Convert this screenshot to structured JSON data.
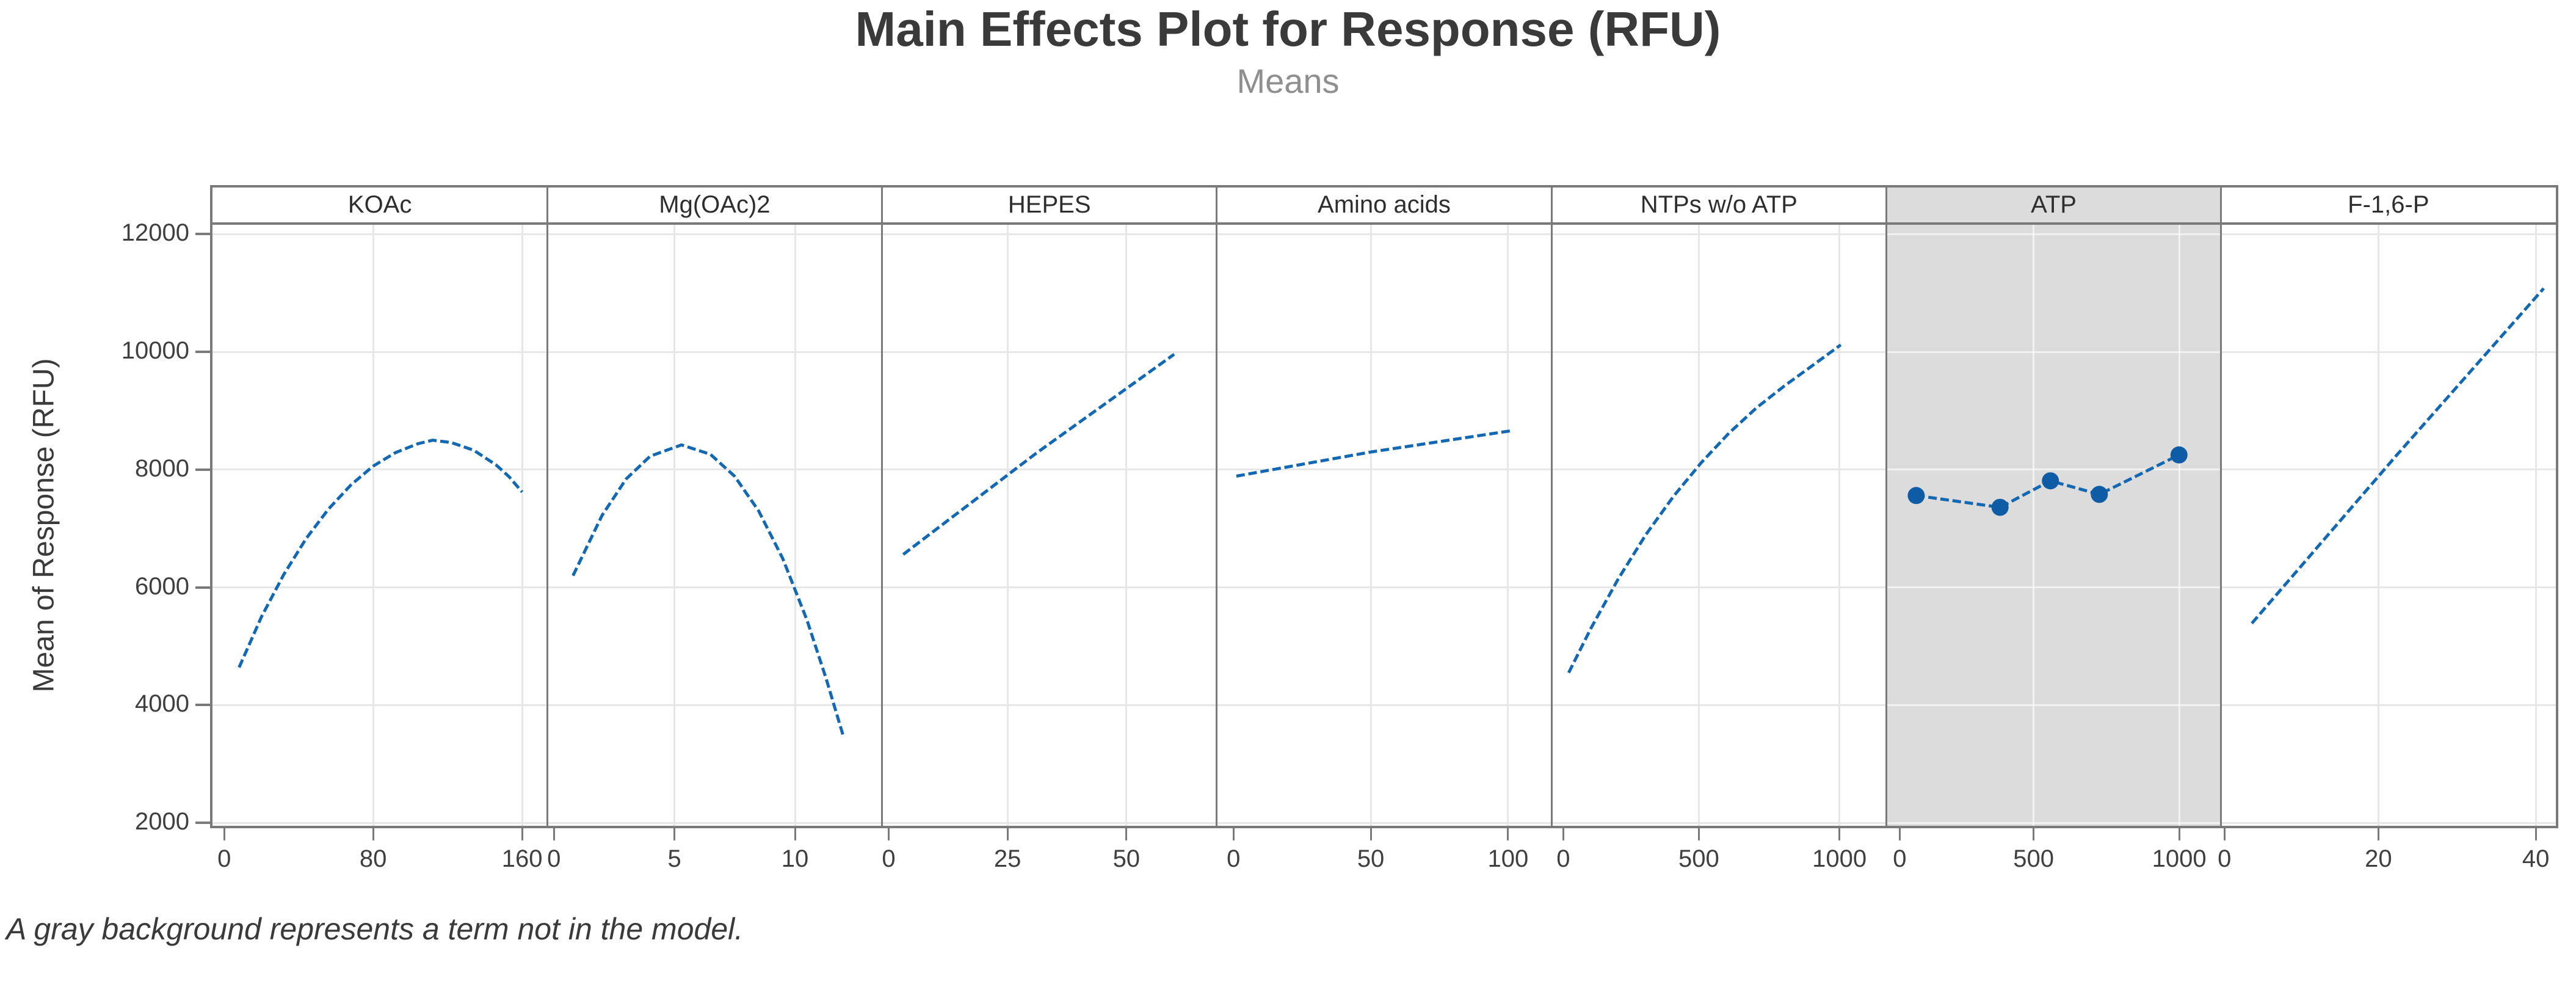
{
  "title": "Main Effects Plot for Response (RFU)",
  "subtitle": "Means",
  "y_axis": {
    "label": "Mean of Response (RFU)"
  },
  "footnote": "A gray background represents a term not in the model.",
  "colors": {
    "line": "#1268b2",
    "marker": "#0f5ca6",
    "gray_panel": "#dcdcdc",
    "frame": "#7a7a7a",
    "grid": "#e7e7e7",
    "grid_on_gray": "rgba(255,255,255,0.6)",
    "tick_text": "#3f3f3f",
    "title_text": "#3a3a3a",
    "subtitle_text": "#8f8f8f"
  },
  "chart_data": {
    "type": "line",
    "title": "Main Effects Plot for Response (RFU)",
    "subtitle": "Means",
    "ylabel": "Mean of Response (RFU)",
    "xlabel": "",
    "grid": true,
    "y_ticks": [
      2000,
      4000,
      6000,
      8000,
      10000,
      12000
    ],
    "y_range_rendered": [
      1950,
      12160
    ],
    "footnote": "A gray background represents a term not in the model.",
    "panels": [
      {
        "label": "KOAc",
        "in_model": true,
        "gray_background": false,
        "markers": false,
        "x_ticks": [
          {
            "v": 0,
            "f": 0.035
          },
          {
            "v": 80,
            "f": 0.48
          },
          {
            "v": 160,
            "f": 0.925
          }
        ],
        "points": [
          [
            8,
            4640
          ],
          [
            20,
            5500
          ],
          [
            32,
            6220
          ],
          [
            44,
            6830
          ],
          [
            56,
            7330
          ],
          [
            68,
            7740
          ],
          [
            80,
            8060
          ],
          [
            92,
            8290
          ],
          [
            104,
            8440
          ],
          [
            112,
            8500
          ],
          [
            122,
            8460
          ],
          [
            134,
            8330
          ],
          [
            146,
            8080
          ],
          [
            153,
            7880
          ],
          [
            160,
            7620
          ]
        ]
      },
      {
        "label": "Mg(OAc)2",
        "in_model": true,
        "gray_background": false,
        "markers": false,
        "x_ticks": [
          {
            "v": 0,
            "f": 0.02
          },
          {
            "v": 5,
            "f": 0.38
          },
          {
            "v": 10,
            "f": 0.74
          }
        ],
        "points": [
          [
            0.8,
            6200
          ],
          [
            2,
            7220
          ],
          [
            3,
            7840
          ],
          [
            4,
            8230
          ],
          [
            5.3,
            8420
          ],
          [
            6.5,
            8260
          ],
          [
            7.5,
            7890
          ],
          [
            8.5,
            7300
          ],
          [
            9.5,
            6490
          ],
          [
            10.5,
            5450
          ],
          [
            11.3,
            4450
          ],
          [
            12,
            3490
          ]
        ]
      },
      {
        "label": "HEPES",
        "in_model": true,
        "gray_background": false,
        "markers": false,
        "x_ticks": [
          {
            "v": 0,
            "f": 0.02
          },
          {
            "v": 25,
            "f": 0.375
          },
          {
            "v": 50,
            "f": 0.73
          }
        ],
        "points": [
          [
            3,
            6560
          ],
          [
            31,
            8280
          ],
          [
            60,
            9960
          ]
        ]
      },
      {
        "label": "Amino acids",
        "in_model": true,
        "gray_background": false,
        "markers": false,
        "x_ticks": [
          {
            "v": 0,
            "f": 0.05
          },
          {
            "v": 50,
            "f": 0.46
          },
          {
            "v": 100,
            "f": 0.87
          }
        ],
        "points": [
          [
            1,
            7890
          ],
          [
            50,
            8300
          ],
          [
            101,
            8660
          ]
        ]
      },
      {
        "label": "NTPs w/o ATP",
        "in_model": true,
        "gray_background": false,
        "markers": false,
        "x_ticks": [
          {
            "v": 0,
            "f": 0.035
          },
          {
            "v": 500,
            "f": 0.44
          },
          {
            "v": 1000,
            "f": 0.86
          }
        ],
        "points": [
          [
            20,
            4550
          ],
          [
            100,
            5300
          ],
          [
            200,
            6150
          ],
          [
            300,
            6900
          ],
          [
            400,
            7550
          ],
          [
            500,
            8120
          ],
          [
            600,
            8620
          ],
          [
            700,
            9050
          ],
          [
            800,
            9420
          ],
          [
            900,
            9760
          ],
          [
            1005,
            10120
          ]
        ]
      },
      {
        "label": "ATP",
        "in_model": false,
        "gray_background": true,
        "markers": true,
        "x_ticks": [
          {
            "v": 0,
            "f": 0.04
          },
          {
            "v": 500,
            "f": 0.44
          },
          {
            "v": 1000,
            "f": 0.875
          }
        ],
        "points": [
          [
            60,
            7560
          ],
          [
            360,
            7360
          ],
          [
            540,
            7810
          ],
          [
            715,
            7580
          ],
          [
            1000,
            8250
          ]
        ]
      },
      {
        "label": "F-1,6-P",
        "in_model": true,
        "gray_background": false,
        "markers": false,
        "x_ticks": [
          {
            "v": 0,
            "f": 0.01
          },
          {
            "v": 20,
            "f": 0.47
          },
          {
            "v": 40,
            "f": 0.94
          }
        ],
        "points": [
          [
            3.5,
            5390
          ],
          [
            22,
            8230
          ],
          [
            41,
            11080
          ]
        ]
      }
    ]
  }
}
